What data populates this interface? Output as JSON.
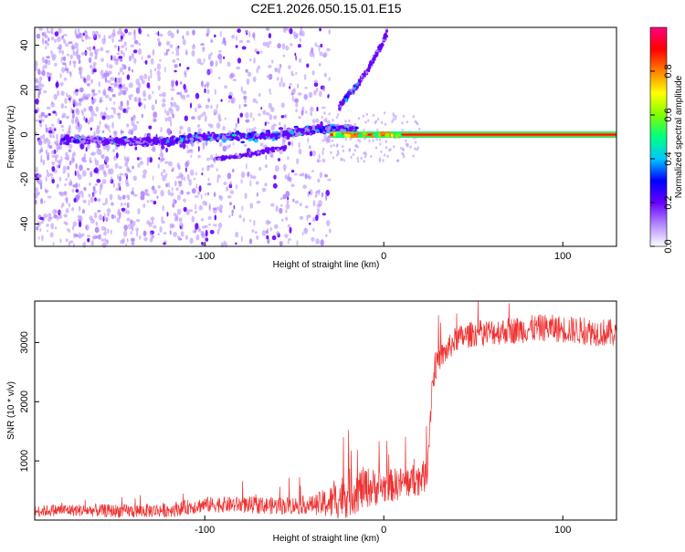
{
  "title": "C2E1.2026.050.15.01.E15",
  "chart_data": [
    {
      "type": "heatmap",
      "xlabel": "Height of straight line (km)",
      "ylabel": "Frequency (Hz)",
      "xlim": [
        -195,
        130
      ],
      "ylim": [
        -50,
        48
      ],
      "xticks": [
        -100,
        0,
        100
      ],
      "yticks": [
        -40,
        -20,
        0,
        20,
        40
      ],
      "colorbar": {
        "label": "Normalized spectral amplitude",
        "range": [
          0,
          1
        ],
        "ticks": [
          0,
          0.2,
          0.4,
          0.6,
          0.8
        ],
        "tick_labels": [
          "0.0",
          "0.2",
          "0.4",
          "0.6",
          "0.8"
        ],
        "colors": [
          "#ffffff",
          "#b388ff",
          "#6600ff",
          "#0000ff",
          "#00c8ff",
          "#00ff80",
          "#80ff00",
          "#ffff00",
          "#ff8000",
          "#ff0000",
          "#ff0080"
        ]
      },
      "features": {
        "carrier_line": {
          "x_range": [
            -30,
            130
          ],
          "frequency": 0
        },
        "main_trace": {
          "x": [
            -180,
            -150,
            -120,
            -100,
            -80,
            -60,
            -40,
            -25,
            -15
          ],
          "frequency": [
            -2,
            -3,
            -3,
            -1,
            -1,
            0,
            2,
            3,
            2
          ]
        },
        "rising_branch": {
          "x": [
            -25,
            -20,
            -15,
            -10,
            -5,
            0,
            2
          ],
          "frequency": [
            12,
            18,
            22,
            28,
            35,
            42,
            46
          ]
        },
        "lower_branch": {
          "x": [
            -95,
            -85,
            -75,
            -65,
            -55
          ],
          "frequency": [
            -11,
            -10,
            -9,
            -7,
            -6
          ]
        }
      }
    },
    {
      "type": "line",
      "series_name": "SNR",
      "color": "#ef3030",
      "xlabel": "Height of straight line (km)",
      "ylabel": "SNR (10 * v/v)",
      "xlim": [
        -195,
        130
      ],
      "ylim": [
        0,
        3700
      ],
      "xticks": [
        -100,
        0,
        100
      ],
      "yticks": [
        1000,
        2000,
        3000
      ],
      "trend": {
        "x": [
          -195,
          -180,
          -160,
          -140,
          -120,
          -100,
          -80,
          -60,
          -40,
          -30,
          -20,
          -10,
          0,
          10,
          20,
          24,
          25,
          27,
          30,
          35,
          40,
          50,
          70,
          90,
          110,
          130
        ],
        "y": [
          150,
          170,
          160,
          150,
          170,
          260,
          260,
          240,
          260,
          290,
          450,
          550,
          560,
          620,
          700,
          750,
          1200,
          2300,
          2700,
          2850,
          3050,
          3150,
          3200,
          3250,
          3200,
          3150
        ]
      },
      "noise_band": {
        "x": [
          -195,
          -100,
          -40,
          -20,
          0,
          24,
          30,
          60,
          130
        ],
        "amplitude": [
          160,
          220,
          260,
          700,
          480,
          460,
          350,
          380,
          400
        ]
      }
    }
  ]
}
